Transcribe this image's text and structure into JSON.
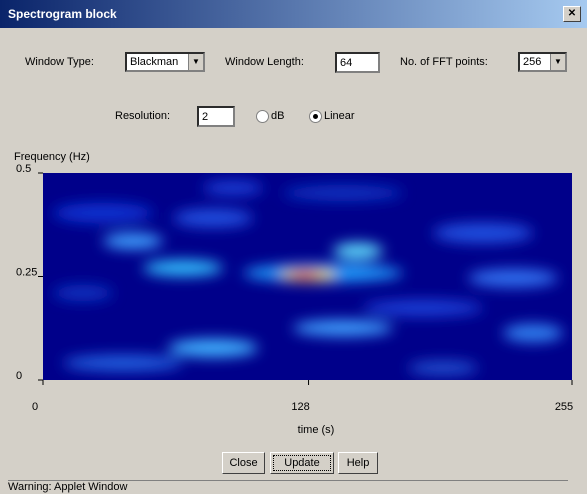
{
  "window": {
    "title": "Spectrogram block",
    "status": "Warning: Applet Window"
  },
  "controls": {
    "window_type_label": "Window Type:",
    "window_type": "Blackman",
    "window_length_label": "Window Length:",
    "window_length": "64",
    "fft_label": "No. of FFT points:",
    "fft_points": "256",
    "resolution_label": "Resolution:",
    "resolution": "2",
    "radio_db": "dB",
    "radio_linear": "Linear"
  },
  "plot": {
    "y_label": "Frequency (Hz)",
    "x_label": "time (s)",
    "xlim": [
      0,
      255
    ],
    "ylim": [
      0,
      0.5
    ],
    "xticks": [
      0,
      128,
      255
    ],
    "yticks": [
      0,
      0.25,
      0.5
    ]
  },
  "buttons": [
    "Close",
    "Update",
    "Help"
  ]
}
